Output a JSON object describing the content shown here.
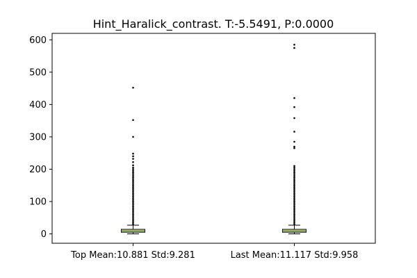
{
  "chart_data": {
    "type": "box",
    "title": "Hint_Haralick_contrast. T:-5.5491, P:0.0000",
    "xlabel": "",
    "ylabel": "",
    "categories": [
      "Top Mean:10.881 Std:9.281",
      "Last Mean:11.117 Std:9.958"
    ],
    "ylim": [
      -29,
      620
    ],
    "yticks": [
      0,
      100,
      200,
      300,
      400,
      500,
      600
    ],
    "grid": false,
    "series": [
      {
        "category": "Top Mean:10.881 Std:9.281",
        "whisker_low": 0,
        "q1": 5,
        "median": 9,
        "q3": 14,
        "whisker_high": 27,
        "outliers": [
          30,
          35,
          40,
          45,
          50,
          55,
          60,
          65,
          70,
          75,
          80,
          85,
          90,
          95,
          100,
          105,
          110,
          115,
          120,
          125,
          130,
          135,
          140,
          145,
          150,
          155,
          160,
          165,
          170,
          175,
          180,
          185,
          190,
          195,
          200,
          205,
          212,
          222,
          232,
          240,
          248,
          300,
          352,
          452
        ]
      },
      {
        "category": "Last Mean:11.117 Std:9.958",
        "whisker_low": 0,
        "q1": 5,
        "median": 9,
        "q3": 14,
        "whisker_high": 27,
        "outliers": [
          30,
          35,
          40,
          45,
          50,
          55,
          60,
          65,
          70,
          75,
          80,
          85,
          90,
          95,
          100,
          105,
          110,
          115,
          120,
          125,
          130,
          135,
          140,
          145,
          150,
          155,
          160,
          165,
          170,
          175,
          180,
          185,
          190,
          195,
          200,
          205,
          210,
          265,
          270,
          285,
          316,
          358,
          392,
          420,
          575,
          585
        ]
      }
    ],
    "colors": {
      "box_fill": "#e8d88c",
      "box_edge": "#000000",
      "median": "#2e8b57",
      "outlier": "#000000"
    }
  }
}
